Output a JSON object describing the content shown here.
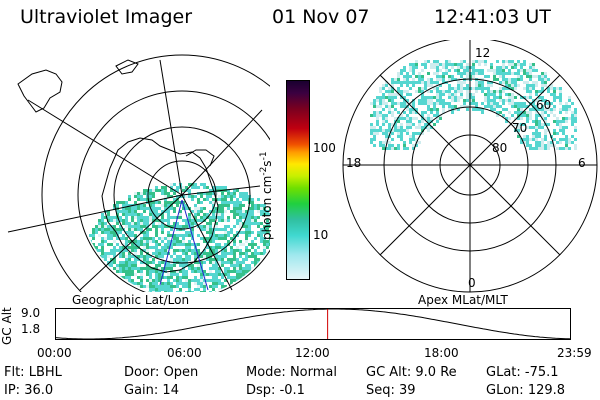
{
  "header": {
    "instrument": "Ultraviolet Imager",
    "date": "01 Nov 07",
    "time": "12:41:03 UT"
  },
  "colors": {
    "aurora_low": "#55d6d0",
    "aurora_mid": "#35c08a",
    "aurora_high": "#9be200",
    "timeline_marker": "#d00000"
  },
  "left_panel": {
    "label": "Geographic Lat/Lon"
  },
  "right_panel": {
    "label": "Apex MLat/MLT",
    "mlt_labels": {
      "top": "12",
      "left": "18",
      "right": "6",
      "bottom": "0"
    },
    "lat_labels": [
      "60",
      "70",
      "80"
    ]
  },
  "colorbar": {
    "unit": "photon cm",
    "unit_sup1": "-2",
    "unit_mid": "s",
    "unit_sup2": "-1",
    "ticks": [
      {
        "label": "100",
        "value": 100
      },
      {
        "label": "10",
        "value": 10
      }
    ]
  },
  "altitude_plot": {
    "axis_title": "GC Alt",
    "yticks": [
      "9.0",
      "1.8"
    ],
    "xticks": [
      "00:00",
      "06:00",
      "12:00",
      "18:00",
      "23:59"
    ],
    "current_time_hours": 12.68
  },
  "status": {
    "row1": [
      {
        "key": "Flt:",
        "value": "LBHL"
      },
      {
        "key": "Door:",
        "value": "Open"
      },
      {
        "key": "Mode:",
        "value": "Normal"
      },
      {
        "key": "GC Alt:",
        "value": "9.0 Re"
      },
      {
        "key": "GLat:",
        "value": "-75.1"
      }
    ],
    "row2": [
      {
        "key": "IP:",
        "value": "36.0"
      },
      {
        "key": "Gain:",
        "value": "14"
      },
      {
        "key": "Dsp:",
        "value": "-0.1"
      },
      {
        "key": "Seq:",
        "value": "39"
      },
      {
        "key": "GLon:",
        "value": "129.8"
      }
    ]
  }
}
